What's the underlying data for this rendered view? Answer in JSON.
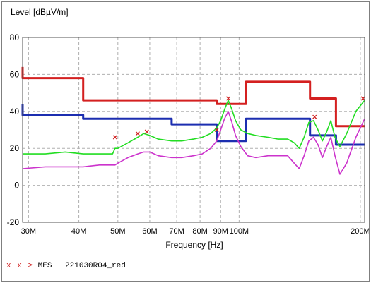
{
  "legend": {
    "markers": "x x >",
    "label": "MES",
    "file": "221030R04_red"
  },
  "chart_data": {
    "type": "line",
    "title": "",
    "ylabel": "Level [dBµV/m]",
    "xlabel": "Frequency [Hz]",
    "xscale": "log",
    "xlim": [
      29000000,
      205000000
    ],
    "ylim": [
      -20,
      80
    ],
    "yticks": [
      -20,
      0,
      20,
      40,
      60,
      80
    ],
    "xticks": [
      {
        "value": 30000000,
        "label": "30M"
      },
      {
        "value": 40000000,
        "label": "40M"
      },
      {
        "value": 50000000,
        "label": "50M"
      },
      {
        "value": 60000000,
        "label": "60M"
      },
      {
        "value": 70000000,
        "label": "70M"
      },
      {
        "value": 80000000,
        "label": "80M"
      },
      {
        "value": 90000000,
        "label": "90M"
      },
      {
        "value": 100000000,
        "label": "100M"
      },
      {
        "value": 200000000,
        "label": "200M"
      }
    ],
    "grid": true,
    "series": [
      {
        "color": "#d42020",
        "style": "step",
        "x": [
          29000000,
          29000000,
          41000000,
          41000000,
          88000000,
          88000000,
          104000000,
          104000000,
          150000000,
          150000000,
          174000000,
          174000000,
          205000000
        ],
        "y": [
          64,
          58,
          58,
          46,
          46,
          44,
          44,
          56,
          56,
          47,
          47,
          32,
          32
        ]
      },
      {
        "color": "#1c2eb0",
        "style": "step",
        "x": [
          29000000,
          29000000,
          41000000,
          41000000,
          68000000,
          68000000,
          88000000,
          88000000,
          104000000,
          104000000,
          150000000,
          150000000,
          174000000,
          174000000,
          205000000
        ],
        "y": [
          44,
          38,
          38,
          36,
          36,
          33,
          33,
          24,
          24,
          36,
          36,
          27,
          27,
          22,
          22
        ]
      },
      {
        "color": "#22dd22",
        "style": "line",
        "x": [
          29000000,
          33000000,
          37000000,
          41000000,
          45000000,
          48500000,
          49200000,
          50000000,
          53000000,
          56000000,
          58000000,
          60000000,
          63000000,
          68000000,
          72000000,
          77000000,
          81000000,
          85000000,
          88000000,
          90000000,
          92000000,
          94000000,
          96000000,
          98000000,
          101000000,
          105000000,
          110000000,
          118000000,
          125000000,
          132000000,
          137000000,
          141000000,
          145000000,
          149000000,
          153000000,
          157000000,
          161000000,
          165000000,
          169000000,
          173000000,
          178000000,
          185000000,
          195000000,
          205000000
        ],
        "y": [
          17,
          17,
          18,
          17,
          17,
          17,
          20,
          20,
          23,
          26,
          28,
          27,
          25,
          24,
          24,
          25,
          26,
          28,
          31,
          35,
          41,
          46,
          41,
          35,
          30,
          28,
          27,
          26,
          25,
          25,
          23,
          20,
          26,
          34,
          35,
          30,
          24,
          29,
          35,
          26,
          21,
          28,
          40,
          46
        ]
      },
      {
        "color": "#cc33cc",
        "style": "line",
        "x": [
          29000000,
          33000000,
          37000000,
          41000000,
          45000000,
          48500000,
          49200000,
          50000000,
          53000000,
          56000000,
          58000000,
          60000000,
          63000000,
          68000000,
          72000000,
          77000000,
          81000000,
          85000000,
          88000000,
          90000000,
          92000000,
          94000000,
          96000000,
          98000000,
          101000000,
          105000000,
          110000000,
          118000000,
          125000000,
          132000000,
          137000000,
          141000000,
          145000000,
          149000000,
          153000000,
          157000000,
          161000000,
          165000000,
          169000000,
          173000000,
          178000000,
          185000000,
          195000000,
          205000000
        ],
        "y": [
          9,
          10,
          10,
          10,
          11,
          11,
          11,
          12,
          15,
          17,
          18,
          18,
          16,
          15,
          15,
          16,
          17,
          20,
          24,
          30,
          36,
          40,
          34,
          27,
          21,
          16,
          15,
          16,
          16,
          16,
          12,
          9,
          16,
          24,
          26,
          22,
          15,
          21,
          26,
          16,
          6,
          12,
          26,
          36
        ]
      }
    ],
    "markers": [
      {
        "x": 49200000,
        "y": 26
      },
      {
        "x": 56000000,
        "y": 28
      },
      {
        "x": 59000000,
        "y": 29
      },
      {
        "x": 88000000,
        "y": 30
      },
      {
        "x": 94000000,
        "y": 47
      },
      {
        "x": 154000000,
        "y": 37
      },
      {
        "x": 203000000,
        "y": 47
      }
    ]
  }
}
